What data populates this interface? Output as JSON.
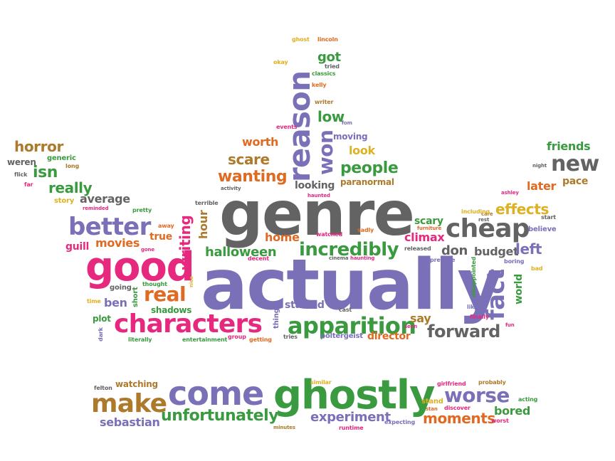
{
  "palette": {
    "purple": "#7a70b8",
    "pink": "#e6287f",
    "green": "#3a9a3f",
    "gray": "#636363",
    "teal": "#2f9b8b",
    "orange": "#e06a22",
    "brown": "#ad7a2c",
    "yellow": "#ddb122",
    "background": "#ffffff"
  },
  "words": [
    {
      "text": "genre",
      "color": "#636363"
    },
    {
      "text": "actually",
      "color": "#7a70b8"
    },
    {
      "text": "good",
      "color": "#e6287f"
    },
    {
      "text": "characters",
      "color": "#e6287f"
    },
    {
      "text": "ghostly",
      "color": "#3a9a3f"
    },
    {
      "text": "come",
      "color": "#7a70b8"
    },
    {
      "text": "reason",
      "color": "#7a70b8"
    },
    {
      "text": "apparition",
      "color": "#3a9a3f"
    },
    {
      "text": "make",
      "color": "#ad7a2c"
    },
    {
      "text": "cheap",
      "color": "#636363"
    },
    {
      "text": "better",
      "color": "#7a70b8"
    },
    {
      "text": "fact",
      "color": "#7a70b8"
    },
    {
      "text": "new",
      "color": "#636363"
    },
    {
      "text": "worse",
      "color": "#7a70b8"
    },
    {
      "text": "incredibly",
      "color": "#3a9a3f"
    },
    {
      "text": "forward",
      "color": "#636363"
    },
    {
      "text": "real",
      "color": "#e06a22"
    },
    {
      "text": "won",
      "color": "#7a70b8"
    },
    {
      "text": "people",
      "color": "#3a9a3f"
    },
    {
      "text": "wanting",
      "color": "#e06a22"
    },
    {
      "text": "effects",
      "color": "#ddb122"
    },
    {
      "text": "writing",
      "color": "#e6287f"
    },
    {
      "text": "halloween",
      "color": "#3a9a3f"
    },
    {
      "text": "unfortunately",
      "color": "#3a9a3f"
    },
    {
      "text": "moments",
      "color": "#e06a22"
    },
    {
      "text": "experiment",
      "color": "#7a70b8"
    },
    {
      "text": "sebastian",
      "color": "#7a70b8"
    },
    {
      "text": "horror",
      "color": "#ad7a2c"
    },
    {
      "text": "isn",
      "color": "#3a9a3f"
    },
    {
      "text": "really",
      "color": "#3a9a3f"
    },
    {
      "text": "average",
      "color": "#636363"
    },
    {
      "text": "movies",
      "color": "#e06a22"
    },
    {
      "text": "guill",
      "color": "#e6287f"
    },
    {
      "text": "true",
      "color": "#e06a22"
    },
    {
      "text": "ben",
      "color": "#7a70b8"
    },
    {
      "text": "scare",
      "color": "#ad7a2c"
    },
    {
      "text": "worth",
      "color": "#e06a22"
    },
    {
      "text": "low",
      "color": "#3a9a3f"
    },
    {
      "text": "got",
      "color": "#3a9a3f"
    },
    {
      "text": "look",
      "color": "#ddb122"
    },
    {
      "text": "looking",
      "color": "#636363"
    },
    {
      "text": "paranormal",
      "color": "#ad7a2c"
    },
    {
      "text": "home",
      "color": "#e06a22"
    },
    {
      "text": "hour",
      "color": "#ad7a2c"
    },
    {
      "text": "scary",
      "color": "#3a9a3f"
    },
    {
      "text": "climax",
      "color": "#e6287f"
    },
    {
      "text": "don",
      "color": "#636363"
    },
    {
      "text": "budget",
      "color": "#636363"
    },
    {
      "text": "left",
      "color": "#7a70b8"
    },
    {
      "text": "later",
      "color": "#e06a22"
    },
    {
      "text": "pace",
      "color": "#ad7a2c"
    },
    {
      "text": "friends",
      "color": "#3a9a3f"
    },
    {
      "text": "world",
      "color": "#3a9a3f"
    },
    {
      "text": "say",
      "color": "#ad7a2c"
    },
    {
      "text": "director",
      "color": "#e06a22"
    },
    {
      "text": "started",
      "color": "#7a70b8"
    },
    {
      "text": "shadows",
      "color": "#3a9a3f"
    },
    {
      "text": "plot",
      "color": "#3a9a3f"
    },
    {
      "text": "watching",
      "color": "#ad7a2c"
    },
    {
      "text": "bored",
      "color": "#3a9a3f"
    },
    {
      "text": "stand",
      "color": "#ddb122"
    },
    {
      "text": "ghost",
      "color": "#ddb122"
    },
    {
      "text": "lincoln",
      "color": "#e06a22"
    },
    {
      "text": "tried",
      "color": "#636363"
    },
    {
      "text": "classics",
      "color": "#3a9a3f"
    },
    {
      "text": "kelly",
      "color": "#e06a22"
    },
    {
      "text": "writer",
      "color": "#ad7a2c"
    },
    {
      "text": "okay",
      "color": "#ddb122"
    },
    {
      "text": "events",
      "color": "#e6287f"
    },
    {
      "text": "fom",
      "color": "#7a70b8"
    },
    {
      "text": "moving",
      "color": "#7a70b8"
    },
    {
      "text": "generic",
      "color": "#3a9a3f"
    },
    {
      "text": "weren",
      "color": "#636363"
    },
    {
      "text": "long",
      "color": "#ad7a2c"
    },
    {
      "text": "flick",
      "color": "#636363"
    },
    {
      "text": "far",
      "color": "#e6287f"
    },
    {
      "text": "story",
      "color": "#ddb122"
    },
    {
      "text": "reminded",
      "color": "#e6287f"
    },
    {
      "text": "pretty",
      "color": "#3a9a3f"
    },
    {
      "text": "away",
      "color": "#e06a22"
    },
    {
      "text": "gone",
      "color": "#e6287f"
    },
    {
      "text": "thought",
      "color": "#3a9a3f"
    },
    {
      "text": "going",
      "color": "#636363"
    },
    {
      "text": "short",
      "color": "#3a9a3f"
    },
    {
      "text": "nice",
      "color": "#ddb122"
    },
    {
      "text": "time",
      "color": "#ddb122"
    },
    {
      "text": "dark",
      "color": "#7a70b8"
    },
    {
      "text": "literally",
      "color": "#3a9a3f"
    },
    {
      "text": "entertainment",
      "color": "#3a9a3f"
    },
    {
      "text": "group",
      "color": "#e6287f"
    },
    {
      "text": "getting",
      "color": "#e06a22"
    },
    {
      "text": "things",
      "color": "#7a70b8"
    },
    {
      "text": "tries",
      "color": "#636363"
    },
    {
      "text": "poltergeist",
      "color": "#7a70b8"
    },
    {
      "text": "terrible",
      "color": "#636363"
    },
    {
      "text": "activity",
      "color": "#636363"
    },
    {
      "text": "haunted",
      "color": "#e6287f"
    },
    {
      "text": "watched",
      "color": "#e6287f"
    },
    {
      "text": "cinema",
      "color": "#636363"
    },
    {
      "text": "haunting",
      "color": "#e6287f"
    },
    {
      "text": "sadly",
      "color": "#e06a22"
    },
    {
      "text": "furniture",
      "color": "#e06a22"
    },
    {
      "text": "released",
      "color": "#636363"
    },
    {
      "text": "premise",
      "color": "#7a70b8"
    },
    {
      "text": "decent",
      "color": "#e6287f"
    },
    {
      "text": "cast",
      "color": "#636363"
    },
    {
      "text": "seen",
      "color": "#e6287f"
    },
    {
      "text": "rest",
      "color": "#636363"
    },
    {
      "text": "care",
      "color": "#ad7a2c"
    },
    {
      "text": "including",
      "color": "#ddb122"
    },
    {
      "text": "finally",
      "color": "#e6287f"
    },
    {
      "text": "boring",
      "color": "#7a70b8"
    },
    {
      "text": "likely",
      "color": "#7a70b8"
    },
    {
      "text": "disappointed",
      "color": "#3a9a3f"
    },
    {
      "text": "fun",
      "color": "#e6287f"
    },
    {
      "text": "bad",
      "color": "#ddb122"
    },
    {
      "text": "night",
      "color": "#636363"
    },
    {
      "text": "ashley",
      "color": "#e6287f"
    },
    {
      "text": "start",
      "color": "#636363"
    },
    {
      "text": "believe",
      "color": "#7a70b8"
    },
    {
      "text": "felton",
      "color": "#636363"
    },
    {
      "text": "similar",
      "color": "#ddb122"
    },
    {
      "text": "girlfriend",
      "color": "#e6287f"
    },
    {
      "text": "probably",
      "color": "#ad7a2c"
    },
    {
      "text": "stan",
      "color": "#e06a22"
    },
    {
      "text": "discover",
      "color": "#e6287f"
    },
    {
      "text": "acting",
      "color": "#3a9a3f"
    },
    {
      "text": "minutes",
      "color": "#ad7a2c"
    },
    {
      "text": "runtime",
      "color": "#e6287f"
    },
    {
      "text": "expecting",
      "color": "#7a70b8"
    },
    {
      "text": "worst",
      "color": "#e6287f"
    }
  ]
}
